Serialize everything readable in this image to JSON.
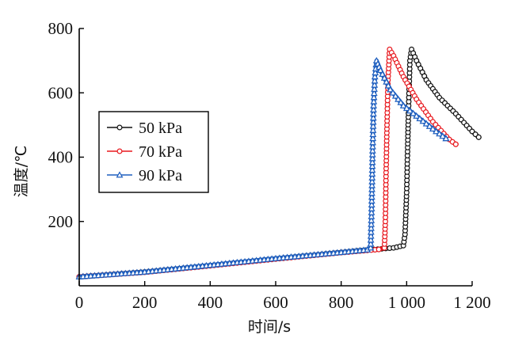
{
  "chart_data": {
    "type": "line",
    "xlabel": "时间/s",
    "ylabel": "温度/℃",
    "xlim": [
      0,
      1200
    ],
    "ylim": [
      0,
      800
    ],
    "x_ticks": [
      0,
      200,
      400,
      600,
      800,
      1000,
      1200
    ],
    "x_tick_labels": [
      "0",
      "200",
      "400",
      "600",
      "800",
      "1 000",
      "1 200"
    ],
    "y_ticks": [
      200,
      400,
      600,
      800
    ],
    "y_tick_labels": [
      "200",
      "400",
      "600",
      "800"
    ],
    "grid": false,
    "legend_position": "left",
    "series": [
      {
        "name": "50 kPa",
        "color": "#111111",
        "marker": "circle",
        "points": [
          [
            0,
            28
          ],
          [
            200,
            43
          ],
          [
            400,
            63
          ],
          [
            600,
            84
          ],
          [
            800,
            104
          ],
          [
            900,
            113
          ],
          [
            960,
            118
          ],
          [
            990,
            125
          ],
          [
            995,
            160
          ],
          [
            1000,
            290
          ],
          [
            1003,
            430
          ],
          [
            1006,
            560
          ],
          [
            1010,
            700
          ],
          [
            1015,
            735
          ],
          [
            1030,
            700
          ],
          [
            1060,
            640
          ],
          [
            1100,
            585
          ],
          [
            1150,
            535
          ],
          [
            1200,
            480
          ],
          [
            1220,
            462
          ]
        ]
      },
      {
        "name": "70 kPa",
        "color": "#e8191f",
        "marker": "circle",
        "points": [
          [
            0,
            28
          ],
          [
            200,
            42
          ],
          [
            400,
            62
          ],
          [
            600,
            83
          ],
          [
            800,
            103
          ],
          [
            880,
            110
          ],
          [
            915,
            113
          ],
          [
            932,
            118
          ],
          [
            935,
            200
          ],
          [
            937,
            340
          ],
          [
            940,
            500
          ],
          [
            943,
            640
          ],
          [
            948,
            735
          ],
          [
            960,
            715
          ],
          [
            990,
            650
          ],
          [
            1030,
            580
          ],
          [
            1080,
            510
          ],
          [
            1130,
            455
          ],
          [
            1150,
            440
          ]
        ]
      },
      {
        "name": "90 kPa",
        "color": "#1f5fbf",
        "marker": "triangle",
        "points": [
          [
            0,
            28
          ],
          [
            200,
            43
          ],
          [
            400,
            64
          ],
          [
            600,
            85
          ],
          [
            800,
            104
          ],
          [
            880,
            112
          ],
          [
            890,
            118
          ],
          [
            893,
            240
          ],
          [
            896,
            420
          ],
          [
            899,
            560
          ],
          [
            903,
            650
          ],
          [
            908,
            700
          ],
          [
            920,
            670
          ],
          [
            950,
            610
          ],
          [
            990,
            560
          ],
          [
            1040,
            520
          ],
          [
            1090,
            480
          ],
          [
            1120,
            458
          ]
        ]
      }
    ]
  }
}
